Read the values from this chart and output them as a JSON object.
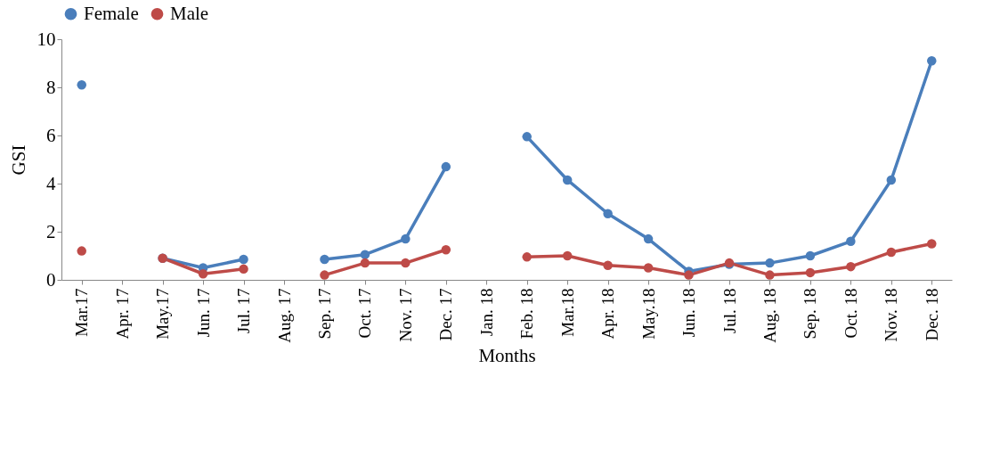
{
  "chart_data": {
    "type": "line",
    "xlabel": "Months",
    "ylabel": "GSI",
    "categories": [
      "Mar.17",
      "Apr. 17",
      "May.17",
      "Jun. 17",
      "Jul. 17",
      "Aug. 17",
      "Sep. 17",
      "Oct. 17",
      "Nov. 17",
      "Dec. 17",
      "Jan. 18",
      "Feb. 18",
      "Mar.18",
      "Apr. 18",
      "May.18",
      "Jun. 18",
      "Jul. 18",
      "Aug. 18",
      "Sep. 18",
      "Oct. 18",
      "Nov. 18",
      "Dec. 18"
    ],
    "series": [
      {
        "name": "Female",
        "color": "#4a7ebb",
        "values": [
          8.1,
          null,
          0.9,
          0.5,
          0.85,
          null,
          0.85,
          1.05,
          1.7,
          4.7,
          null,
          5.95,
          4.15,
          2.75,
          1.7,
          0.35,
          0.65,
          0.7,
          1.0,
          1.6,
          4.15,
          9.1
        ]
      },
      {
        "name": "Male",
        "color": "#be4b48",
        "values": [
          1.2,
          null,
          0.9,
          0.25,
          0.45,
          null,
          0.2,
          0.7,
          0.7,
          1.25,
          null,
          0.95,
          1.0,
          0.6,
          0.5,
          0.2,
          0.7,
          0.2,
          0.3,
          0.55,
          1.15,
          1.5
        ]
      }
    ],
    "ylim": [
      0,
      10
    ],
    "yticks": [
      0,
      2,
      4,
      6,
      8,
      10
    ],
    "grid": false,
    "legend": "top",
    "marker": "circle",
    "line_style": "solid"
  }
}
